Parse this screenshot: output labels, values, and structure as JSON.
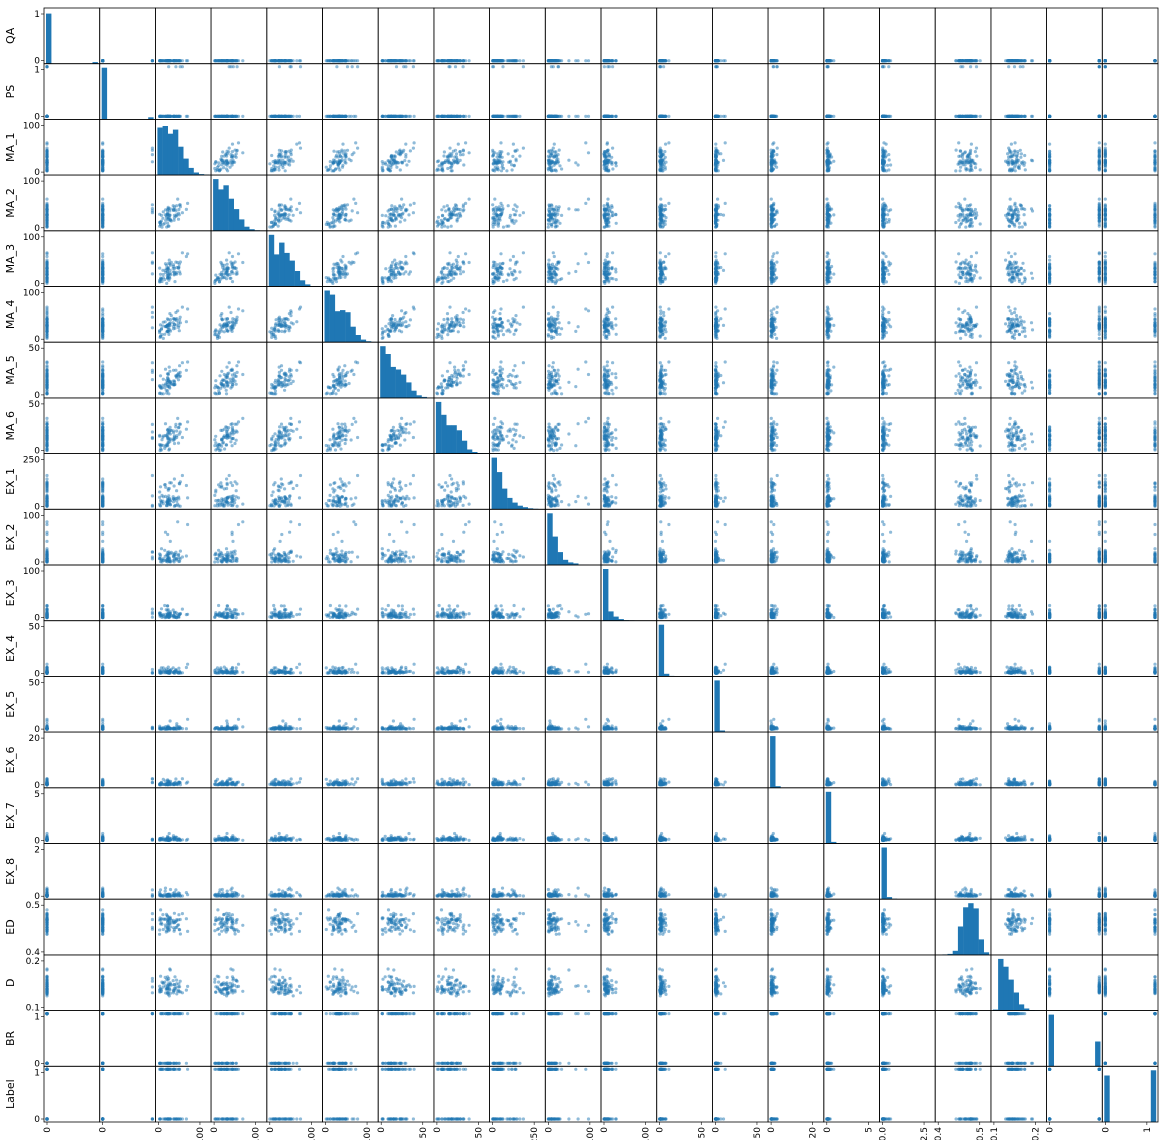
{
  "chart_data": {
    "type": "scatter",
    "kind": "scatter-matrix",
    "diagonal": "histogram",
    "point_color": "#1f77b4",
    "point_alpha": 0.5,
    "grid": false,
    "legend": "none",
    "variables": [
      {
        "name": "QA",
        "ylim": [
          0,
          1
        ],
        "yticks": [
          "0",
          "1"
        ],
        "xticks": [
          "0"
        ],
        "hist": [
          0.97,
          0,
          0,
          0,
          0,
          0,
          0,
          0,
          0,
          0.03
        ],
        "dist": "binary_rare"
      },
      {
        "name": "PS",
        "ylim": [
          0,
          1
        ],
        "yticks": [
          "0",
          "1"
        ],
        "xticks": [
          "0"
        ],
        "hist": [
          1,
          0,
          0,
          0,
          0,
          0,
          0,
          0,
          0,
          0.04
        ],
        "dist": "binary_rare"
      },
      {
        "name": "MA_1",
        "ylim": [
          0,
          150
        ],
        "yticks": [
          "0",
          "100"
        ],
        "xticks": [
          "0",
          "100"
        ],
        "hist": [
          0.92,
          0.95,
          0.8,
          0.88,
          0.55,
          0.32,
          0.14,
          0.05,
          0.02,
          0.01
        ],
        "dist": "skew",
        "mean": 35,
        "sd": 22
      },
      {
        "name": "MA_2",
        "ylim": [
          0,
          130
        ],
        "yticks": [
          "0",
          "100"
        ],
        "xticks": [
          "0",
          "100"
        ],
        "hist": [
          1,
          0.8,
          0.88,
          0.62,
          0.42,
          0.22,
          0.08,
          0.03,
          0.01,
          0.005
        ],
        "dist": "skew",
        "mean": 33,
        "sd": 20
      },
      {
        "name": "MA_3",
        "ylim": [
          0,
          125
        ],
        "yticks": [
          "0",
          "100"
        ],
        "xticks": [
          "0",
          "100"
        ],
        "hist": [
          1,
          0.62,
          0.85,
          0.65,
          0.5,
          0.3,
          0.12,
          0.04,
          0.01,
          0.005
        ],
        "dist": "skew",
        "mean": 30,
        "sd": 19
      },
      {
        "name": "MA_4",
        "ylim": [
          0,
          110
        ],
        "yticks": [
          "0",
          "100"
        ],
        "xticks": [
          "0",
          "100"
        ],
        "hist": [
          1,
          0.92,
          0.6,
          0.62,
          0.58,
          0.3,
          0.14,
          0.05,
          0.02,
          0.005
        ],
        "dist": "skew",
        "mean": 28,
        "sd": 18
      },
      {
        "name": "MA_5",
        "ylim": [
          0,
          100
        ],
        "yticks": [
          "0",
          "50"
        ],
        "xticks": [
          "0",
          "50"
        ],
        "hist": [
          1,
          0.85,
          0.6,
          0.55,
          0.45,
          0.3,
          0.14,
          0.05,
          0.02,
          0.005
        ],
        "dist": "skew",
        "mean": 26,
        "sd": 17
      },
      {
        "name": "MA_6",
        "ylim": [
          0,
          80
        ],
        "yticks": [
          "0",
          "50"
        ],
        "xticks": [
          "0",
          "50"
        ],
        "hist": [
          1,
          0.75,
          0.55,
          0.55,
          0.45,
          0.25,
          0.08,
          0.03,
          0.01,
          0.005
        ],
        "dist": "skew",
        "mean": 22,
        "sd": 14
      },
      {
        "name": "EX_1",
        "ylim": [
          0,
          330
        ],
        "yticks": [
          "0",
          "250"
        ],
        "xticks": [
          "0",
          "250"
        ],
        "hist": [
          1,
          0.72,
          0.4,
          0.22,
          0.13,
          0.07,
          0.04,
          0.02,
          0.01,
          0.005
        ],
        "dist": "exp",
        "mean": 60
      },
      {
        "name": "EX_2",
        "ylim": [
          0,
          170
        ],
        "yticks": [
          "0",
          "100"
        ],
        "xticks": [
          "0",
          "100"
        ],
        "hist": [
          1,
          0.55,
          0.25,
          0.1,
          0.05,
          0.03,
          0.01,
          0.005,
          0.002,
          0.002
        ],
        "dist": "exp",
        "mean": 22
      },
      {
        "name": "EX_3",
        "ylim": [
          0,
          110
        ],
        "yticks": [
          "0",
          "100"
        ],
        "xticks": [
          "0",
          "100"
        ],
        "hist": [
          1,
          0.18,
          0.08,
          0.03,
          0.01,
          0.005,
          0.002,
          0.001,
          0,
          0
        ],
        "dist": "exp",
        "mean": 8
      },
      {
        "name": "EX_4",
        "ylim": [
          0,
          60
        ],
        "yticks": [
          "0",
          "50"
        ],
        "xticks": [
          "0",
          "50"
        ],
        "hist": [
          1,
          0.05,
          0.01,
          0.005,
          0.002,
          0,
          0,
          0,
          0,
          0
        ],
        "dist": "exp",
        "mean": 2
      },
      {
        "name": "EX_5",
        "ylim": [
          0,
          55
        ],
        "yticks": [
          "0",
          "50"
        ],
        "xticks": [
          "0",
          "50"
        ],
        "hist": [
          1,
          0.03,
          0.005,
          0,
          0,
          0,
          0,
          0,
          0,
          0
        ],
        "dist": "exp",
        "mean": 1.2
      },
      {
        "name": "EX_6",
        "ylim": [
          0,
          22
        ],
        "yticks": [
          "0",
          "20"
        ],
        "xticks": [
          "0",
          "20"
        ],
        "hist": [
          1,
          0.03,
          0.005,
          0,
          0,
          0,
          0,
          0,
          0,
          0
        ],
        "dist": "exp",
        "mean": 0.6
      },
      {
        "name": "EX_7",
        "ylim": [
          0,
          6
        ],
        "yticks": [
          "0",
          "5"
        ],
        "xticks": [
          "0",
          "5"
        ],
        "hist": [
          1,
          0.03,
          0.005,
          0,
          0,
          0,
          0,
          0,
          0,
          0
        ],
        "dist": "exp",
        "mean": 0.15
      },
      {
        "name": "EX_8",
        "ylim": [
          0,
          3
        ],
        "yticks": [
          "0",
          "2"
        ],
        "xticks": [
          "0.0",
          "2.5"
        ],
        "hist": [
          1,
          0.04,
          0.01,
          0,
          0,
          0,
          0,
          0,
          0,
          0
        ],
        "dist": "exp",
        "mean": 0.07
      },
      {
        "name": "ED",
        "ylim": [
          0.35,
          0.7
        ],
        "yticks": [
          "0.4",
          "0.5"
        ],
        "xticks": [
          "0.4",
          "0.5"
        ],
        "hist": [
          0.005,
          0.01,
          0.02,
          0.08,
          0.55,
          0.92,
          1,
          0.9,
          0.3,
          0.05
        ],
        "dist": "normal",
        "mean": 0.55,
        "sd": 0.04
      },
      {
        "name": "D",
        "ylim": [
          0.05,
          0.22
        ],
        "yticks": [
          "0.1",
          "0.2"
        ],
        "xticks": [
          "0.1",
          "0.2"
        ],
        "hist": [
          0.02,
          1,
          0.85,
          0.6,
          0.35,
          0.12,
          0.04,
          0.01,
          0.005,
          0.002
        ],
        "dist": "skewnorm",
        "mean": 0.11,
        "sd": 0.025
      },
      {
        "name": "BR",
        "ylim": [
          0,
          1
        ],
        "yticks": [
          "0",
          "1"
        ],
        "xticks": [
          "0"
        ],
        "hist": [
          1,
          0,
          0,
          0,
          0,
          0,
          0,
          0,
          0,
          0.48
        ],
        "dist": "binary_even"
      },
      {
        "name": "Label",
        "ylim": [
          0,
          1
        ],
        "yticks": [
          "0",
          "1"
        ],
        "xticks": [
          "0",
          "1"
        ],
        "hist": [
          0.9,
          0,
          0,
          0,
          0,
          0,
          0,
          0,
          0,
          1
        ],
        "dist": "binary_even"
      }
    ]
  }
}
